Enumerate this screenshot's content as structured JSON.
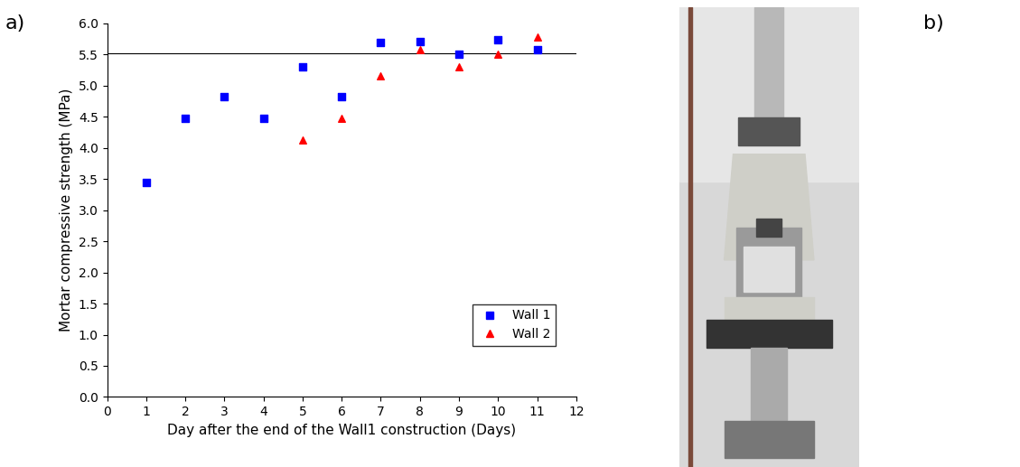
{
  "chart_data": {
    "type": "scatter",
    "panel_labels": [
      "a)",
      "b)"
    ],
    "x_label": "Day after the end of the Wall1 construction (Days)",
    "y_label": "Mortar compressive strength (MPa)",
    "series": [
      {
        "name": "Wall 1",
        "color": "#0000ff",
        "marker": "square",
        "x": [
          1,
          2,
          3,
          4,
          5,
          6,
          7,
          8,
          9,
          10,
          11
        ],
        "values": [
          3.45,
          4.48,
          4.82,
          4.48,
          5.3,
          4.82,
          5.7,
          5.71,
          5.5,
          5.73,
          5.57
        ]
      },
      {
        "name": "Wall 2",
        "color": "#ff0000",
        "marker": "triangle",
        "x": [
          5,
          6,
          7,
          8,
          9,
          10,
          11
        ],
        "values": [
          4.13,
          4.47,
          5.16,
          5.57,
          5.3,
          5.5,
          5.78
        ]
      }
    ],
    "hline": 5.52,
    "xlim": [
      0,
      12
    ],
    "xticks": [
      0,
      1,
      2,
      3,
      4,
      5,
      6,
      7,
      8,
      9,
      10,
      11,
      12
    ],
    "ylim": [
      0,
      6
    ],
    "yticks": [
      {
        "value": 0,
        "label": "0.0"
      },
      {
        "value": 0.5,
        "label": "0.5"
      },
      {
        "value": 1,
        "label": "1.0"
      },
      {
        "value": 1.5,
        "label": "1.5"
      },
      {
        "value": 2,
        "label": "2.0"
      },
      {
        "value": 2.5,
        "label": "2.5"
      },
      {
        "value": 3,
        "label": "3.0"
      },
      {
        "value": 3.5,
        "label": "3.5"
      },
      {
        "value": 4,
        "label": "4.0"
      },
      {
        "value": 4.5,
        "label": "4.5"
      },
      {
        "value": 5,
        "label": "5.0"
      },
      {
        "value": 5.5,
        "label": "5.5"
      },
      {
        "value": 6,
        "label": "6.0"
      }
    ],
    "grid": false,
    "legend": "lower right"
  }
}
